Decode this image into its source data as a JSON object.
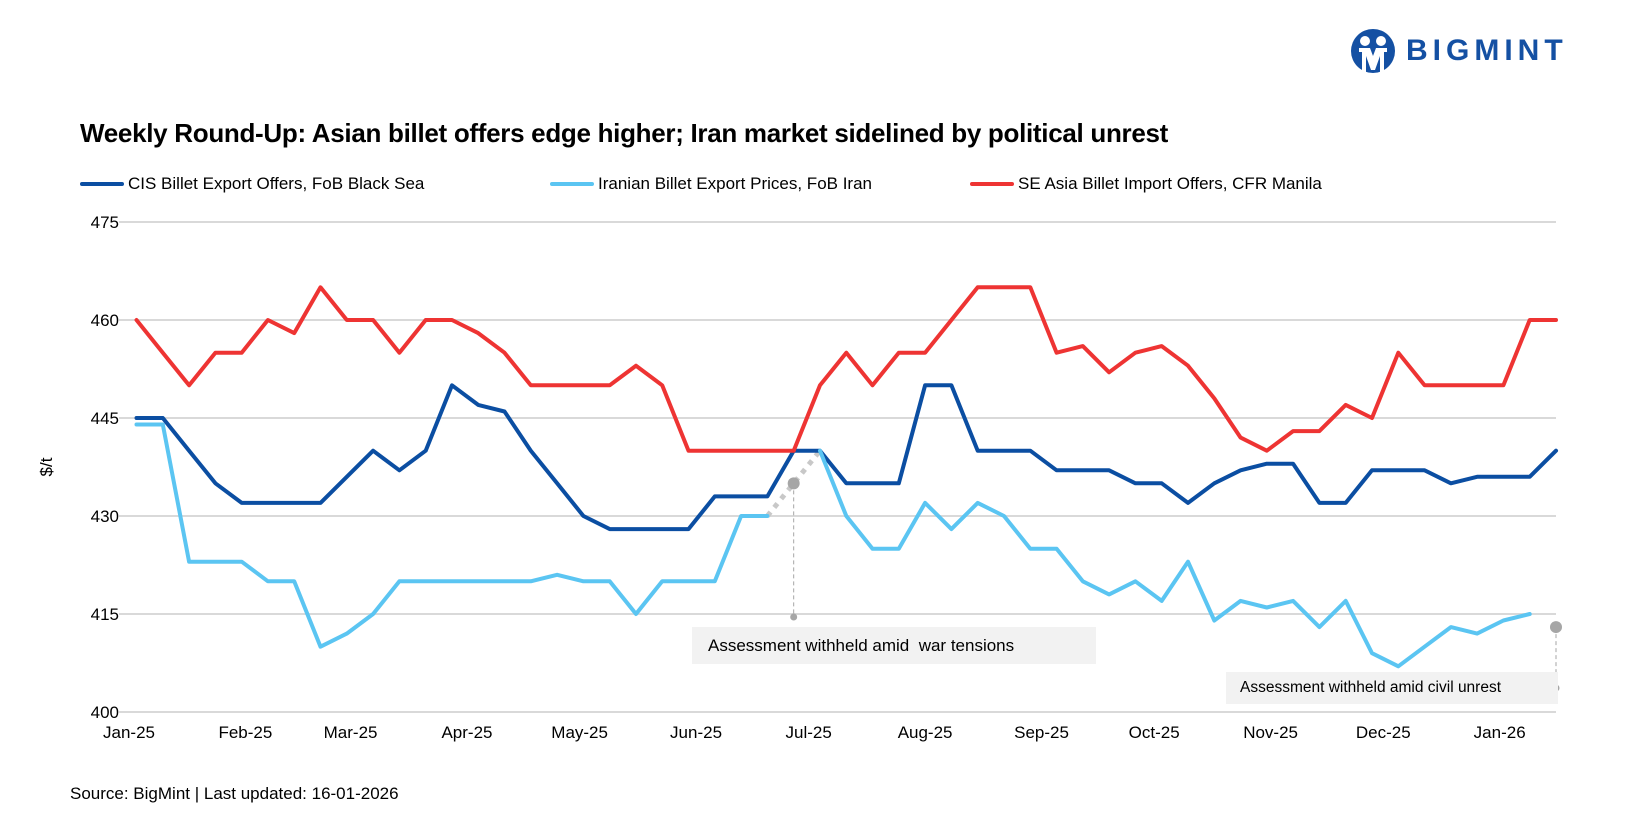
{
  "logo": {
    "text": "BIGMINT",
    "color": "#1450A3"
  },
  "source": "Source: BigMint | Last updated: 16-01-2026",
  "chart_data": {
    "type": "line",
    "title": "Weekly Round-Up: Asian billet offers edge higher; Iran market sidelined by political unrest",
    "xlabel": "",
    "ylabel": "$/t",
    "ylim": [
      400,
      475
    ],
    "yticks": [
      400,
      415,
      430,
      445,
      460,
      475
    ],
    "xlim": [
      "2025-01-01",
      "2026-01-16"
    ],
    "xticks": [
      {
        "date": "2025-01-01",
        "label": "Jan-25"
      },
      {
        "date": "2025-02-01",
        "label": "Feb-25"
      },
      {
        "date": "2025-03-01",
        "label": "Mar-25"
      },
      {
        "date": "2025-04-01",
        "label": "Apr-25"
      },
      {
        "date": "2025-05-01",
        "label": "May-25"
      },
      {
        "date": "2025-06-01",
        "label": "Jun-25"
      },
      {
        "date": "2025-07-01",
        "label": "Jul-25"
      },
      {
        "date": "2025-08-01",
        "label": "Aug-25"
      },
      {
        "date": "2025-09-01",
        "label": "Sep-25"
      },
      {
        "date": "2025-10-01",
        "label": "Oct-25"
      },
      {
        "date": "2025-11-01",
        "label": "Nov-25"
      },
      {
        "date": "2025-12-01",
        "label": "Dec-25"
      },
      {
        "date": "2026-01-01",
        "label": "Jan-26"
      }
    ],
    "grid": "horizontal",
    "legend": "top",
    "x": [
      "2025-01-03",
      "2025-01-10",
      "2025-01-17",
      "2025-01-24",
      "2025-01-31",
      "2025-02-07",
      "2025-02-14",
      "2025-02-21",
      "2025-02-28",
      "2025-03-07",
      "2025-03-14",
      "2025-03-21",
      "2025-03-28",
      "2025-04-04",
      "2025-04-11",
      "2025-04-18",
      "2025-04-25",
      "2025-05-02",
      "2025-05-09",
      "2025-05-16",
      "2025-05-23",
      "2025-05-30",
      "2025-06-06",
      "2025-06-13",
      "2025-06-20",
      "2025-06-27",
      "2025-07-04",
      "2025-07-11",
      "2025-07-18",
      "2025-07-25",
      "2025-08-01",
      "2025-08-08",
      "2025-08-15",
      "2025-08-22",
      "2025-08-29",
      "2025-09-05",
      "2025-09-12",
      "2025-09-19",
      "2025-09-26",
      "2025-10-03",
      "2025-10-10",
      "2025-10-17",
      "2025-10-24",
      "2025-10-31",
      "2025-11-07",
      "2025-11-14",
      "2025-11-21",
      "2025-11-28",
      "2025-12-05",
      "2025-12-12",
      "2025-12-19",
      "2025-12-26",
      "2026-01-02",
      "2026-01-09",
      "2026-01-16"
    ],
    "series": [
      {
        "name": "CIS Billet Export Offers, FoB Black Sea",
        "color": "#0B4EA2",
        "values": [
          445,
          445,
          440,
          435,
          432,
          432,
          432,
          432,
          436,
          440,
          437,
          440,
          450,
          447,
          446,
          440,
          435,
          430,
          428,
          428,
          428,
          428,
          433,
          433,
          433,
          440,
          440,
          435,
          435,
          435,
          450,
          450,
          440,
          440,
          440,
          437,
          437,
          437,
          435,
          435,
          432,
          435,
          437,
          438,
          438,
          432,
          432,
          437,
          437,
          437,
          435,
          436,
          436,
          436,
          440
        ]
      },
      {
        "name": "Iranian Billet Export Prices, FoB Iran",
        "color": "#5BC5F2",
        "values": [
          444,
          444,
          423,
          423,
          423,
          420,
          420,
          410,
          412,
          415,
          420,
          420,
          420,
          420,
          420,
          420,
          421,
          420,
          420,
          415,
          420,
          420,
          420,
          430,
          430,
          null,
          440,
          430,
          425,
          425,
          432,
          428,
          432,
          430,
          425,
          425,
          420,
          418,
          420,
          417,
          423,
          414,
          417,
          416,
          417,
          413,
          417,
          409,
          407,
          410,
          413,
          412,
          414,
          415,
          null
        ]
      },
      {
        "name": "SE Asia Billet Import Offers, CFR Manila",
        "color": "#EE3433",
        "values": [
          460,
          455,
          450,
          455,
          455,
          460,
          458,
          465,
          460,
          460,
          455,
          460,
          460,
          458,
          455,
          450,
          450,
          450,
          450,
          453,
          450,
          440,
          440,
          440,
          440,
          440,
          450,
          455,
          450,
          455,
          455,
          460,
          465,
          465,
          465,
          455,
          456,
          452,
          455,
          456,
          453,
          448,
          442,
          440,
          443,
          443,
          447,
          445,
          455,
          450,
          450,
          450,
          450,
          460,
          460
        ]
      }
    ],
    "annotations": [
      {
        "text": "Assessment withheld amid  war tensions",
        "date": "2025-06-27",
        "value": 435,
        "gap_from": "2025-06-20",
        "gap_to": "2025-07-04"
      },
      {
        "text": "Assessment withheld amid civil unrest",
        "date": "2026-01-16",
        "value": 413
      }
    ]
  }
}
